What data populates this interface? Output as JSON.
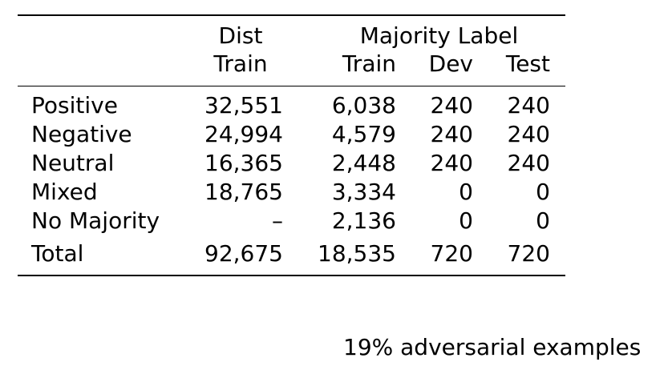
{
  "table": {
    "headers": {
      "dist": "Dist",
      "dist_train": "Train",
      "majority_label": "Majority Label",
      "train": "Train",
      "dev": "Dev",
      "test": "Test"
    },
    "rows": [
      {
        "label": "Positive",
        "dist_train": "32,551",
        "train": "6,038",
        "dev": "240",
        "test": "240"
      },
      {
        "label": "Negative",
        "dist_train": "24,994",
        "train": "4,579",
        "dev": "240",
        "test": "240"
      },
      {
        "label": "Neutral",
        "dist_train": "16,365",
        "train": "2,448",
        "dev": "240",
        "test": "240"
      },
      {
        "label": "Mixed",
        "dist_train": "18,765",
        "train": "3,334",
        "dev": "0",
        "test": "0"
      },
      {
        "label": "No Majority",
        "dist_train": "–",
        "train": "2,136",
        "dev": "0",
        "test": "0"
      }
    ],
    "total": {
      "label": "Total",
      "dist_train": "92,675",
      "train": "18,535",
      "dev": "720",
      "test": "720"
    }
  },
  "caption": "19% adversarial examples"
}
